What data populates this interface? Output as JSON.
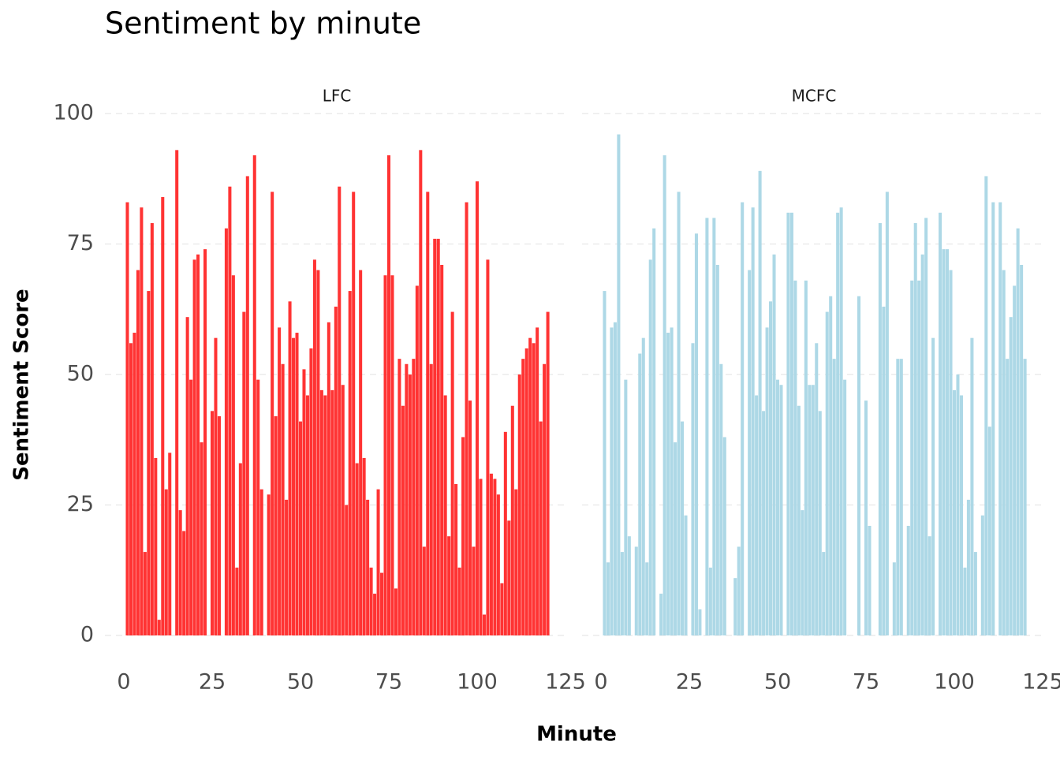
{
  "chart_data": {
    "type": "bar",
    "title": "Sentiment by minute",
    "x_label": "Minute",
    "y_label": "Sentiment Score",
    "x": [
      1,
      2,
      3,
      4,
      5,
      6,
      7,
      8,
      9,
      10,
      11,
      12,
      13,
      14,
      15,
      16,
      17,
      18,
      19,
      20,
      21,
      22,
      23,
      24,
      25,
      26,
      27,
      28,
      29,
      30,
      31,
      32,
      33,
      34,
      35,
      36,
      37,
      38,
      39,
      40,
      41,
      42,
      43,
      44,
      45,
      46,
      47,
      48,
      49,
      50,
      51,
      52,
      53,
      54,
      55,
      56,
      57,
      58,
      59,
      60,
      61,
      62,
      63,
      64,
      65,
      66,
      67,
      68,
      69,
      70,
      71,
      72,
      73,
      74,
      75,
      76,
      77,
      78,
      79,
      80,
      81,
      82,
      83,
      84,
      85,
      86,
      87,
      88,
      89,
      90,
      91,
      92,
      93,
      94,
      95,
      96,
      97,
      98,
      99,
      100,
      101,
      102,
      103,
      104,
      105,
      106,
      107,
      108,
      109,
      110,
      111,
      112,
      113,
      114,
      115,
      116,
      117,
      118,
      119,
      120
    ],
    "series": [
      {
        "name": "LFC",
        "color": "#ff3333",
        "values": [
          83,
          56,
          58,
          70,
          82,
          16,
          66,
          79,
          34,
          3,
          84,
          28,
          35,
          null,
          93,
          24,
          20,
          61,
          49,
          72,
          73,
          37,
          74,
          null,
          43,
          57,
          42,
          null,
          78,
          86,
          69,
          13,
          33,
          62,
          88,
          null,
          92,
          49,
          28,
          null,
          27,
          85,
          42,
          59,
          52,
          26,
          64,
          57,
          58,
          41,
          51,
          46,
          55,
          72,
          70,
          47,
          46,
          60,
          47,
          63,
          86,
          48,
          25,
          66,
          85,
          33,
          70,
          34,
          26,
          13,
          8,
          28,
          12,
          69,
          92,
          69,
          9,
          53,
          44,
          52,
          50,
          53,
          67,
          93,
          17,
          85,
          52,
          76,
          76,
          71,
          46,
          19,
          62,
          29,
          13,
          38,
          83,
          45,
          17,
          87,
          30,
          4,
          72,
          31,
          30,
          27,
          10,
          39,
          22,
          44,
          28,
          50,
          53,
          55,
          57,
          56,
          59,
          41,
          52,
          62
        ]
      },
      {
        "name": "MCFC",
        "color": "#add8e6",
        "values": [
          66,
          14,
          59,
          60,
          96,
          16,
          49,
          19,
          null,
          17,
          54,
          57,
          14,
          72,
          78,
          null,
          8,
          92,
          58,
          59,
          37,
          85,
          41,
          23,
          null,
          56,
          77,
          5,
          null,
          80,
          13,
          80,
          71,
          52,
          38,
          null,
          null,
          11,
          17,
          83,
          null,
          70,
          82,
          46,
          89,
          43,
          59,
          64,
          73,
          49,
          48,
          null,
          81,
          81,
          68,
          44,
          24,
          68,
          48,
          48,
          56,
          43,
          16,
          62,
          65,
          53,
          81,
          82,
          49,
          null,
          null,
          null,
          65,
          null,
          45,
          21,
          null,
          null,
          79,
          63,
          85,
          null,
          14,
          53,
          53,
          null,
          21,
          68,
          79,
          68,
          73,
          80,
          19,
          57,
          null,
          81,
          74,
          74,
          70,
          47,
          50,
          46,
          13,
          26,
          57,
          16,
          null,
          23,
          88,
          40,
          83,
          null,
          83,
          70,
          53,
          61,
          67,
          78,
          71,
          53
        ]
      }
    ],
    "xlim": [
      0,
      125
    ],
    "xticks": [
      0,
      25,
      50,
      75,
      100,
      125
    ],
    "ylim": [
      0,
      100
    ],
    "yticks": [
      0,
      25,
      50,
      75,
      100
    ],
    "grid": true
  }
}
